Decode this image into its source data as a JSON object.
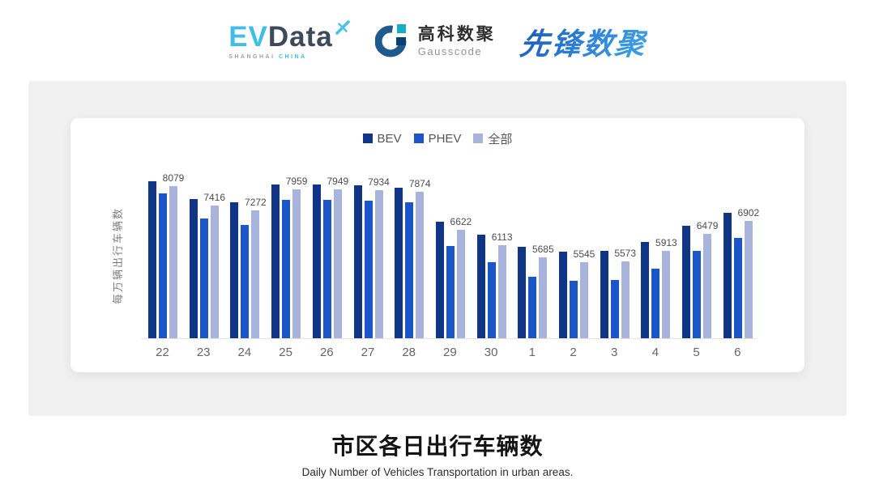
{
  "header": {
    "evdata": {
      "ev": "EV",
      "data": "Data",
      "sub_left": "SHANGHAI",
      "sub_right": "CHINA",
      "accent_color": "#41bde6",
      "dark_color": "#3d4a5a"
    },
    "gausscode": {
      "cn": "高科数聚",
      "en": "Gausscode",
      "ring_color": "#1e5a8c",
      "teal_color": "#17aec4",
      "square_color": "#0e3f72"
    },
    "xianfeng": {
      "text": "先锋数聚",
      "color": "#2878d0"
    }
  },
  "chart_data": {
    "type": "bar",
    "title": "市区各日出行车辆数",
    "subtitle": "Daily Number of Vehicles Transportation in urban areas.",
    "ylabel": "每万辆出行车辆数",
    "xlabel": "",
    "categories": [
      "22",
      "23",
      "24",
      "25",
      "26",
      "27",
      "28",
      "29",
      "30",
      "1",
      "2",
      "3",
      "4",
      "5",
      "6"
    ],
    "series": [
      {
        "name": "BEV",
        "color": "#103586",
        "show_labels": false,
        "values": [
          8230,
          7650,
          7540,
          8110,
          8110,
          8090,
          8010,
          6890,
          6440,
          6060,
          5880,
          5910,
          6220,
          6760,
          7190
        ],
        "note": "values estimated from bar heights"
      },
      {
        "name": "PHEV",
        "color": "#1c55c7",
        "show_labels": false,
        "values": [
          7830,
          6980,
          6780,
          7610,
          7610,
          7580,
          7530,
          6080,
          5530,
          5050,
          4920,
          4930,
          5320,
          5900,
          6350
        ],
        "note": "values estimated from bar heights"
      },
      {
        "name": "全部",
        "color": "#a9b4dc",
        "show_labels": true,
        "values": [
          8079,
          7416,
          7272,
          7959,
          7949,
          7934,
          7874,
          6622,
          6113,
          5685,
          5545,
          5573,
          5913,
          6479,
          6902
        ]
      }
    ],
    "data_labels": [
      8079,
      7416,
      7272,
      7959,
      7949,
      7934,
      7874,
      6622,
      6113,
      5685,
      5545,
      5573,
      5913,
      6479,
      6902
    ],
    "ylim": [
      3000,
      8500
    ],
    "grid": false,
    "legend_position": "top",
    "axis_line_color": "#e4e4e4",
    "tick_color": "#666666",
    "label_color": "#4d4d4d"
  }
}
